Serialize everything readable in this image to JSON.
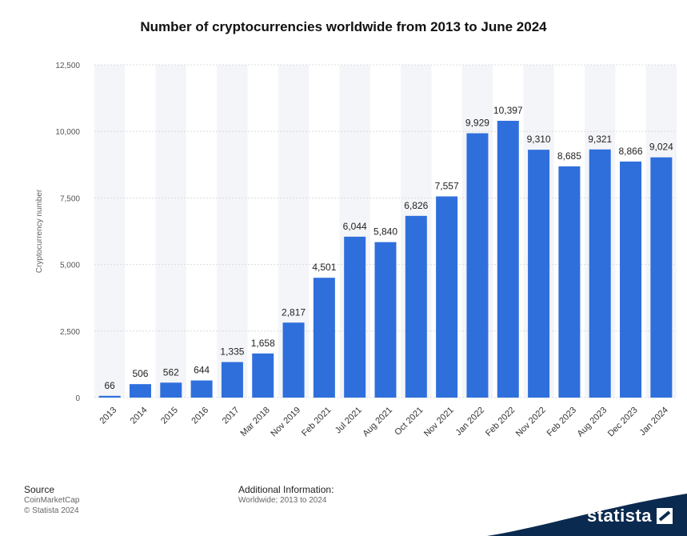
{
  "title": "Number of cryptocurrencies worldwide from 2013 to June 2024",
  "chart_data": {
    "type": "bar",
    "title": "Number of cryptocurrencies worldwide from 2013 to June 2024",
    "ylabel": "Cryptocurrency number",
    "xlabel": "",
    "ylim": [
      0,
      12500
    ],
    "yticks": [
      "0",
      "2,500",
      "5,000",
      "7,500",
      "10,000",
      "12,500"
    ],
    "categories": [
      "2013",
      "2014",
      "2015",
      "2016",
      "2017",
      "Mar 2018",
      "Nov 2019",
      "Feb 2021",
      "Jul 2021",
      "Aug 2021",
      "Oct 2021",
      "Nov 2021",
      "Jan 2022",
      "Feb 2022",
      "Nov 2022",
      "Feb 2023",
      "Aug 2023",
      "Dec 2023",
      "Jan 2024"
    ],
    "values": [
      66,
      506,
      562,
      644,
      1335,
      1658,
      2817,
      4501,
      6044,
      5840,
      6826,
      7557,
      9929,
      10397,
      9310,
      8685,
      9321,
      8866,
      9024
    ],
    "value_labels": [
      "66",
      "506",
      "562",
      "644",
      "1,335",
      "1,658",
      "2,817",
      "4,501",
      "6,044",
      "5,840",
      "6,826",
      "7,557",
      "9,929",
      "10,397",
      "9,310",
      "8,685",
      "9,321",
      "8,866",
      "9,024"
    ],
    "bar_color": "#2f6fdc",
    "grid": true
  },
  "footer": {
    "source_heading": "Source",
    "source_lines": [
      "CoinMarketCap",
      "© Statista 2024"
    ],
    "info_heading": "Additional Information:",
    "info_line": "Worldwide; 2013 to 2024"
  },
  "brand": {
    "name": "statista",
    "color": "#0b2a4f",
    "icon": "statista-logo-icon"
  }
}
